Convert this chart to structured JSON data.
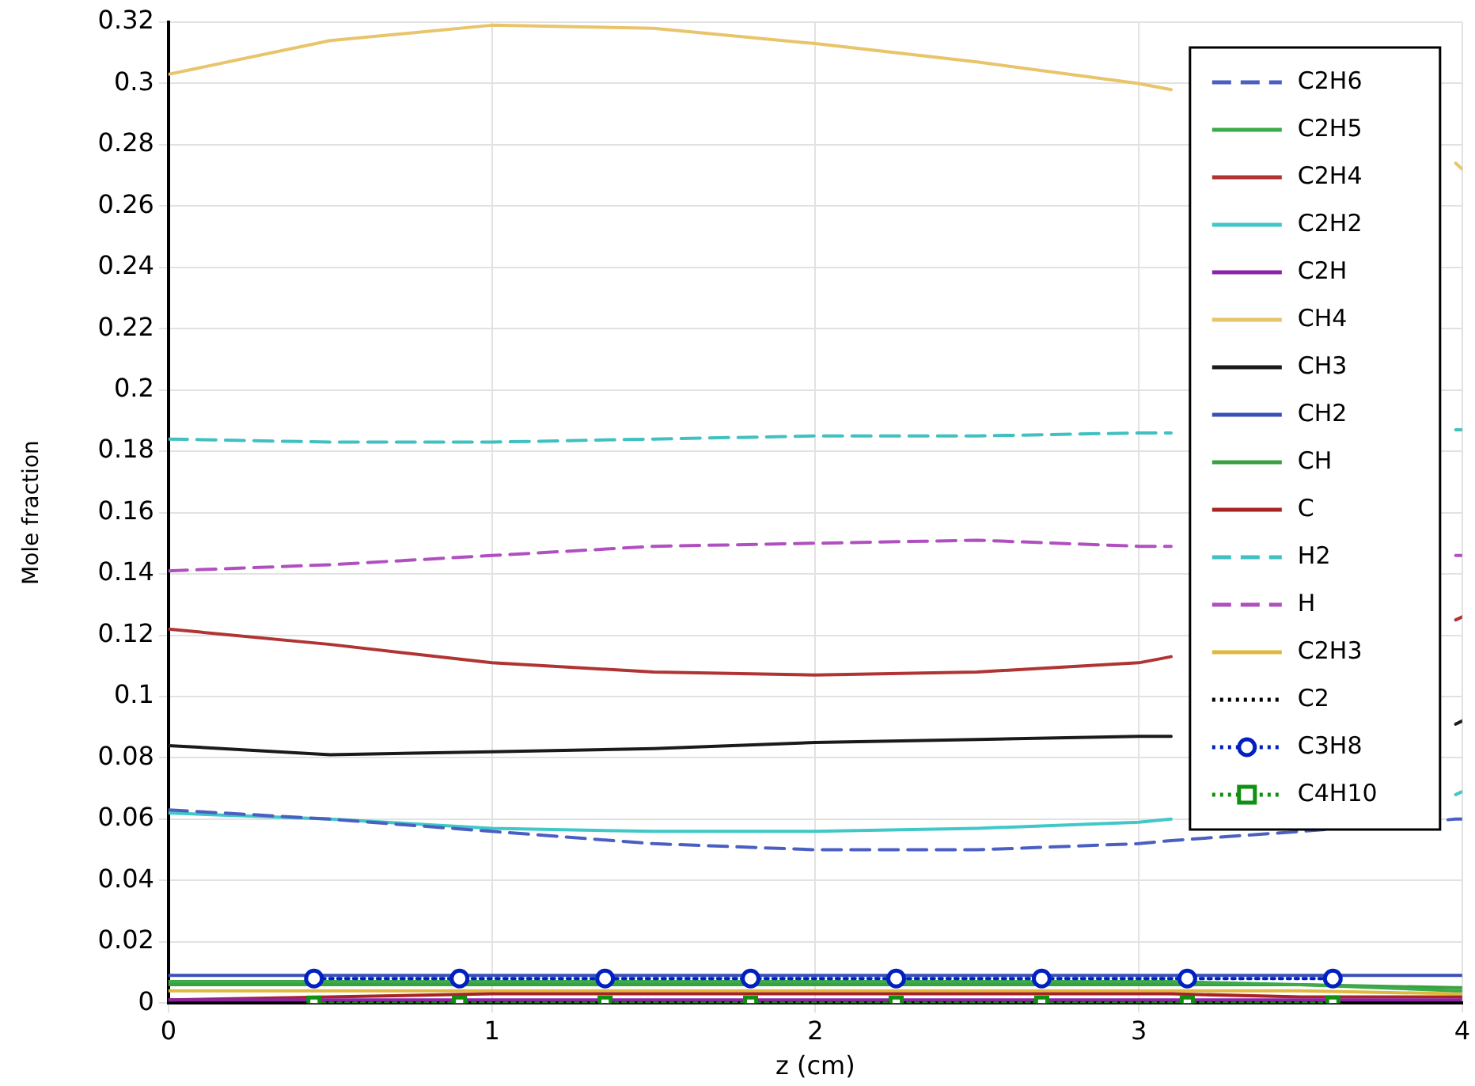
{
  "chart_data": {
    "type": "line",
    "xlabel": "z (cm)",
    "ylabel": "Mole fraction",
    "x": [
      0,
      0.5,
      1,
      1.5,
      2,
      2.5,
      3,
      3.1,
      3.5,
      3.98,
      4
    ],
    "xlim": [
      0,
      4
    ],
    "xticks": [
      0,
      1,
      2,
      3,
      4
    ],
    "ylim": [
      0,
      0.32
    ],
    "yticks": [
      0,
      0.02,
      0.04,
      0.06,
      0.08,
      0.1,
      0.12,
      0.14,
      0.16,
      0.18,
      0.2,
      0.22,
      0.24,
      0.26,
      0.28,
      0.3,
      0.32
    ],
    "grid": true,
    "legend": "top right",
    "series": [
      {
        "name": "C2H6",
        "color": "#4a5fc1",
        "line_style": "dashed",
        "values": [
          0.063,
          0.06,
          0.056,
          0.052,
          0.05,
          0.05,
          0.052,
          0.053,
          0.056,
          0.06,
          0.06
        ]
      },
      {
        "name": "C2H5",
        "color": "#3cab4a",
        "line_style": "solid",
        "values": [
          0.007,
          0.007,
          0.007,
          0.007,
          0.007,
          0.007,
          0.007,
          0.007,
          0.006,
          0.004,
          0.004
        ]
      },
      {
        "name": "C2H4",
        "color": "#b03434",
        "line_style": "solid",
        "values": [
          0.122,
          0.117,
          0.111,
          0.108,
          0.107,
          0.108,
          0.111,
          0.113,
          null,
          0.125,
          0.126
        ]
      },
      {
        "name": "C2H2",
        "color": "#40c8c8",
        "line_style": "solid",
        "values": [
          0.062,
          0.06,
          0.057,
          0.056,
          0.056,
          0.057,
          0.059,
          0.06,
          null,
          0.068,
          0.069
        ]
      },
      {
        "name": "C2H",
        "color": "#8b22a8",
        "line_style": "solid",
        "values": [
          0.001,
          0.001,
          0.001,
          0.001,
          0.001,
          0.001,
          0.001,
          0.001,
          0.001,
          0.001,
          0.001
        ]
      },
      {
        "name": "CH4",
        "color": "#e8c46a",
        "line_style": "solid",
        "values": [
          0.303,
          0.314,
          0.319,
          0.318,
          0.313,
          0.307,
          0.3,
          0.298,
          null,
          0.274,
          0.272
        ]
      },
      {
        "name": "CH3",
        "color": "#1a1a1a",
        "line_style": "solid",
        "values": [
          0.084,
          0.081,
          0.082,
          0.083,
          0.085,
          0.086,
          0.087,
          0.087,
          null,
          0.091,
          0.092
        ]
      },
      {
        "name": "CH2",
        "color": "#3a4fb8",
        "line_style": "solid",
        "values": [
          0.009,
          0.009,
          0.009,
          0.009,
          0.009,
          0.009,
          0.009,
          0.009,
          0.009,
          0.009,
          0.009
        ]
      },
      {
        "name": "CH",
        "color": "#3aa040",
        "line_style": "solid",
        "values": [
          0.006,
          0.006,
          0.006,
          0.006,
          0.006,
          0.006,
          0.006,
          0.006,
          0.006,
          0.005,
          0.005
        ]
      },
      {
        "name": "C",
        "color": "#a82424",
        "line_style": "solid",
        "values": [
          0.001,
          0.002,
          0.003,
          0.003,
          0.003,
          0.003,
          0.003,
          0.003,
          0.002,
          0.002,
          0.002
        ]
      },
      {
        "name": "H2",
        "color": "#40c0c0",
        "line_style": "dashed",
        "values": [
          0.184,
          0.183,
          0.183,
          0.184,
          0.185,
          0.185,
          0.186,
          0.186,
          null,
          0.187,
          0.187
        ]
      },
      {
        "name": "H",
        "color": "#b050c0",
        "line_style": "dashed",
        "values": [
          0.141,
          0.143,
          0.146,
          0.149,
          0.15,
          0.151,
          0.149,
          0.149,
          null,
          0.146,
          0.146
        ]
      },
      {
        "name": "C2H3",
        "color": "#e0b840",
        "line_style": "solid",
        "values": [
          0.004,
          0.004,
          0.004,
          0.004,
          0.004,
          0.004,
          0.004,
          0.004,
          0.004,
          0.003,
          0.003
        ]
      },
      {
        "name": "C2",
        "color": "#000000",
        "line_style": "dotted",
        "values": [
          0,
          0,
          0,
          0,
          0,
          0,
          0,
          0,
          0,
          0,
          0
        ]
      },
      {
        "name": "C3H8",
        "color": "#0020c0",
        "line_style": "dotted",
        "marker": "circle",
        "x": [
          0.45,
          0.9,
          1.35,
          1.8,
          2.25,
          2.7,
          3.15,
          3.6
        ],
        "values": [
          0.008,
          0.008,
          0.008,
          0.008,
          0.008,
          0.008,
          0.008,
          0.008
        ]
      },
      {
        "name": "C4H10",
        "color": "#109010",
        "line_style": "dotted",
        "marker": "square",
        "x": [
          0.45,
          0.9,
          1.35,
          1.8,
          2.25,
          2.7,
          3.15,
          3.6
        ],
        "values": [
          0,
          0,
          0,
          0,
          0,
          0,
          0,
          0
        ]
      }
    ]
  }
}
